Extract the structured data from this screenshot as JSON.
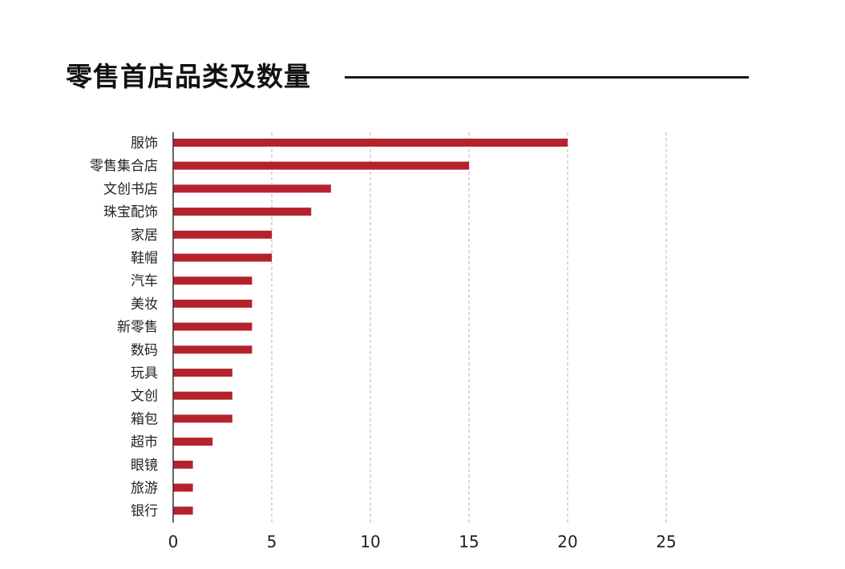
{
  "chart_data": {
    "type": "bar",
    "orientation": "horizontal",
    "title": "零售首店品类及数量",
    "xlabel": "",
    "ylabel": "",
    "categories": [
      "服饰",
      "零售集合店",
      "文创书店",
      "珠宝配饰",
      "家居",
      "鞋帽",
      "汽车",
      "美妆",
      "新零售",
      "数码",
      "玩具",
      "文创",
      "箱包",
      "超市",
      "眼镜",
      "旅游",
      "银行"
    ],
    "values": [
      20,
      15,
      8,
      7,
      5,
      5,
      4,
      4,
      4,
      4,
      3,
      3,
      3,
      2,
      1,
      1,
      1
    ],
    "xlim": [
      0,
      25
    ],
    "xticks": [
      "0",
      "5",
      "10",
      "15",
      "20",
      "25"
    ],
    "grid": "vertical dashed",
    "legend": "none",
    "bar_color": "#b5222d",
    "grid_color": "#d9a3a8",
    "axis_color": "#333333"
  }
}
